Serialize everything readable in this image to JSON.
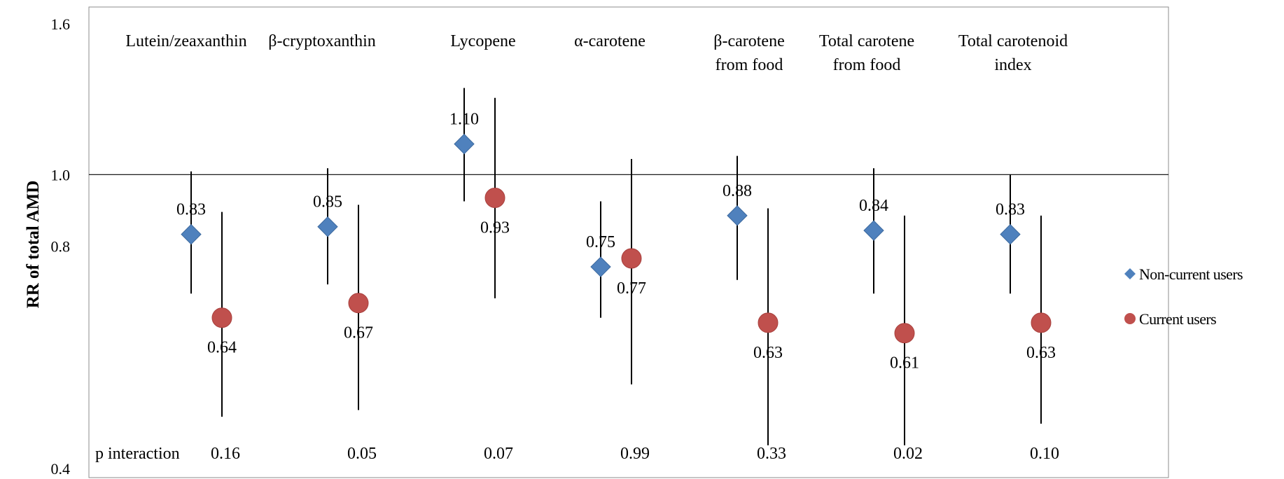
{
  "chart_data": {
    "type": "scatter",
    "ylabel": "RR of total AMD",
    "yscale": "log",
    "ylim": [
      0.4,
      1.6
    ],
    "yticks": [
      "0.4",
      "0.8",
      "1.0",
      "1.6"
    ],
    "reference_line": 1.0,
    "categories": [
      [
        "Lutein/zeaxanthin"
      ],
      [
        "β-cryptoxanthin"
      ],
      [
        "Lycopene"
      ],
      [
        "α-carotene"
      ],
      [
        "β-carotene",
        "from food"
      ],
      [
        "Total carotene",
        "from food"
      ],
      [
        "Total carotenoid",
        "index"
      ]
    ],
    "p_interaction_label": "p interaction",
    "p_interaction": [
      "0.16",
      "0.05",
      "0.07",
      "0.99",
      "0.33",
      "0.02",
      "0.10"
    ],
    "series": [
      {
        "name": "Non-current users",
        "marker": "diamond",
        "color": "#4f81bd",
        "values": [
          0.83,
          0.85,
          1.1,
          0.75,
          0.88,
          0.84,
          0.83
        ],
        "labels": [
          "0.83",
          "0.85",
          "1.10",
          "0.75",
          "0.88",
          "0.84",
          "0.83"
        ],
        "ci": [
          [
            0.69,
            1.01
          ],
          [
            0.71,
            1.02
          ],
          [
            0.92,
            1.31
          ],
          [
            0.64,
            0.92
          ],
          [
            0.72,
            1.06
          ],
          [
            0.69,
            1.02
          ],
          [
            0.69,
            1.0
          ]
        ]
      },
      {
        "name": "Current users",
        "marker": "circle",
        "color": "#c0504d",
        "values": [
          0.64,
          0.67,
          0.93,
          0.77,
          0.63,
          0.61,
          0.63
        ],
        "labels": [
          "0.64",
          "0.67",
          "0.93",
          "0.77",
          "0.63",
          "0.61",
          "0.63"
        ],
        "ci": [
          [
            0.47,
            0.89
          ],
          [
            0.48,
            0.91
          ],
          [
            0.68,
            1.27
          ],
          [
            0.52,
            1.05
          ],
          [
            0.43,
            0.9
          ],
          [
            0.43,
            0.88
          ],
          [
            0.46,
            0.88
          ]
        ]
      }
    ],
    "legend_position": "right"
  }
}
